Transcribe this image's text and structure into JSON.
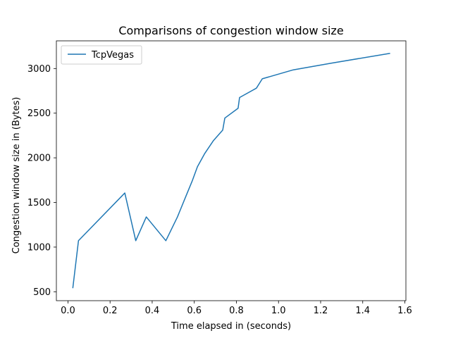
{
  "chart_data": {
    "type": "line",
    "title": "Comparisons of congestion window size",
    "xlabel": "Time elapsed in (seconds)",
    "ylabel": "Congestion window size in (Bytes)",
    "xlim": [
      -0.055,
      1.605
    ],
    "ylim": [
      400,
      3310
    ],
    "xticks": [
      0.0,
      0.2,
      0.4,
      0.6,
      0.8,
      1.0,
      1.2,
      1.4,
      1.6
    ],
    "xtick_labels": [
      "0.0",
      "0.2",
      "0.4",
      "0.6",
      "0.8",
      "1.0",
      "1.2",
      "1.4",
      "1.6"
    ],
    "yticks": [
      500,
      1000,
      1500,
      2000,
      2500,
      3000
    ],
    "ytick_labels": [
      "500",
      "1000",
      "1500",
      "2000",
      "2500",
      "3000"
    ],
    "grid": false,
    "legend_position": "upper-left",
    "series": [
      {
        "name": "TcpVegas",
        "color": "#1f77b4",
        "x": [
          0.023,
          0.05,
          0.27,
          0.322,
          0.372,
          0.465,
          0.52,
          0.555,
          0.59,
          0.615,
          0.65,
          0.69,
          0.735,
          0.745,
          0.808,
          0.815,
          0.895,
          0.923,
          1.07,
          1.25,
          1.53
        ],
        "y": [
          540,
          1072,
          1606,
          1072,
          1338,
          1072,
          1338,
          1540,
          1740,
          1900,
          2050,
          2190,
          2310,
          2445,
          2555,
          2675,
          2780,
          2885,
          2985,
          3060,
          3170
        ]
      }
    ]
  }
}
